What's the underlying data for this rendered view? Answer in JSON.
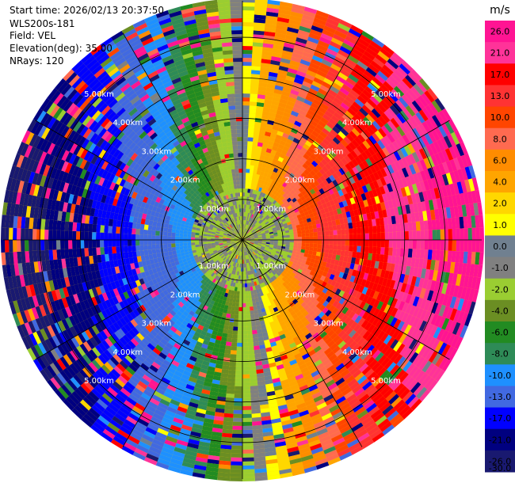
{
  "header": {
    "start_time": "Start time: 2026/02/13 20:37:50",
    "instrument": "WLS200s-181",
    "field": "Field: VEL",
    "elevation": "Elevation(deg): 35.00",
    "nrays": "NRays: 120"
  },
  "chart_data": {
    "type": "heatmap",
    "projection": "polar-ppi",
    "field": "VEL",
    "units": "m/s",
    "elevation_deg": 35.0,
    "n_rays": 120,
    "range_rings_km": [
      1.0,
      2.0,
      3.0,
      4.0,
      5.0
    ],
    "range_ring_labels": [
      "1.00km",
      "2.00km",
      "3.00km",
      "4.00km",
      "5.00km"
    ],
    "max_range_km": 5.9,
    "azimuth_lines_deg": [
      0,
      30,
      60,
      90,
      120,
      150,
      180,
      210,
      240,
      270,
      300,
      330
    ],
    "colorbar": {
      "position": "right",
      "tick_labels": [
        "26.0",
        "21.0",
        "17.0",
        "13.0",
        "10.0",
        "8.0",
        "6.0",
        "4.0",
        "2.0",
        "1.0",
        "0.0",
        "-1.0",
        "-2.0",
        "-4.0",
        "-6.0",
        "-8.0",
        "-10.0",
        "-13.0",
        "-17.0",
        "-21.0",
        "-26.0",
        "-30.0"
      ],
      "colors": [
        "#ff1493",
        "#ff3399",
        "#ff0000",
        "#ff3333",
        "#ff4500",
        "#ff6a50",
        "#ff8c00",
        "#ffa500",
        "#ffd700",
        "#ffff00",
        "#708090",
        "#808080",
        "#9acd32",
        "#6b8e23",
        "#228b22",
        "#2e8b57",
        "#1e90ff",
        "#4169e1",
        "#0000ff",
        "#000080",
        "#191970"
      ]
    },
    "velocity_pattern": {
      "description_axis": "radial velocity vs azimuth",
      "positive_peak_azimuth_deg": 90,
      "negative_peak_azimuth_deg": 270,
      "near_range_km": 1.3,
      "near_value_ms": -2.0
    }
  }
}
